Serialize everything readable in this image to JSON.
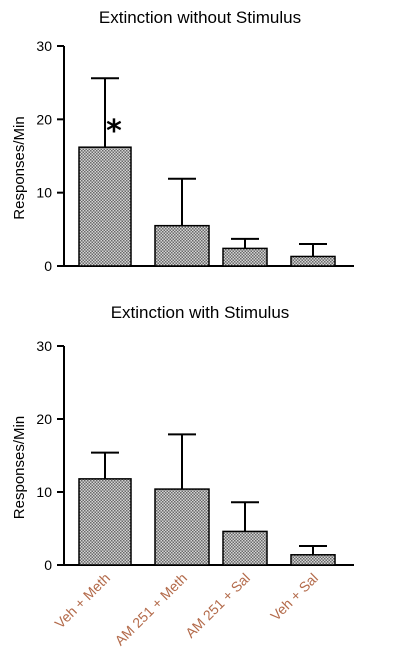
{
  "chart_data": [
    {
      "type": "bar",
      "title": "Extinction without Stimulus",
      "ylabel": "Responses/Min",
      "ylim": [
        0,
        30
      ],
      "yticks": [
        "0",
        "10",
        "20",
        "30"
      ],
      "categories": [
        "Veh + Meth",
        "AM 251 + Meth",
        "AM 251 + Sal",
        "Veh + Sal"
      ],
      "values": [
        16.2,
        5.5,
        2.4,
        1.3
      ],
      "errors": [
        9.4,
        6.4,
        1.3,
        1.7
      ],
      "annotations": [
        {
          "category": "Veh + Meth",
          "text": "*"
        }
      ],
      "grid": false,
      "bar_pattern": "crosshatch"
    },
    {
      "type": "bar",
      "title": "Extinction with Stimulus",
      "ylabel": "Responses/Min",
      "ylim": [
        0,
        30
      ],
      "yticks": [
        "0",
        "10",
        "20",
        "30"
      ],
      "categories": [
        "Veh + Meth",
        "AM 251 + Meth",
        "AM 251 + Sal",
        "Veh + Sal"
      ],
      "values": [
        11.8,
        10.4,
        4.6,
        1.4
      ],
      "errors": [
        3.6,
        7.5,
        4.0,
        1.2
      ],
      "grid": false,
      "bar_pattern": "crosshatch"
    }
  ]
}
